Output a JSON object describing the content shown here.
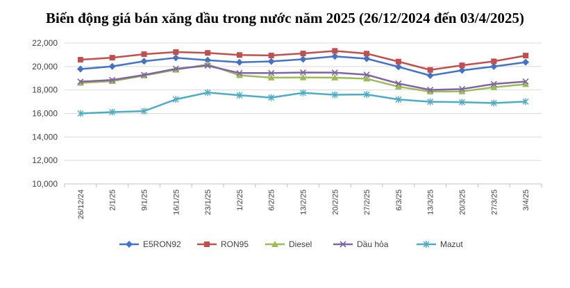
{
  "chart_data": {
    "type": "line",
    "title": "Biến động giá bán xăng dầu trong nước năm 2025 (26/12/2024 đến 03/4/2025)",
    "xlabel": "",
    "ylabel": "",
    "ylim": [
      10000,
      22000
    ],
    "yticks": [
      "10,000",
      "12,000",
      "14,000",
      "16,000",
      "18,000",
      "20,000",
      "22,000"
    ],
    "grid": true,
    "legend_position": "bottom",
    "categories": [
      "26/12/24",
      "2/1/25",
      "9/1/25",
      "16/1/25",
      "23/1/25",
      "1/2/25",
      "6/2/25",
      "13/2/25",
      "20/2/25",
      "27/2/25",
      "6/3/25",
      "13/3/25",
      "20/3/25",
      "27/3/25",
      "3/4/25"
    ],
    "series": [
      {
        "name": "E5RON92",
        "color": "#4472C4",
        "marker": "diamond",
        "values": [
          19780,
          20010,
          20450,
          20740,
          20540,
          20360,
          20430,
          20620,
          20860,
          20670,
          19970,
          19230,
          19670,
          20000,
          20370
        ]
      },
      {
        "name": "RON95",
        "color": "#C0504D",
        "marker": "square",
        "values": [
          20580,
          20750,
          21050,
          21230,
          21160,
          20980,
          20940,
          21110,
          21330,
          21100,
          20420,
          19710,
          20100,
          20440,
          20930
        ]
      },
      {
        "name": "Diesel",
        "color": "#9BBB59",
        "marker": "triangle",
        "values": [
          18600,
          18750,
          19230,
          19720,
          20180,
          19250,
          19050,
          19070,
          19050,
          18960,
          18280,
          17860,
          17880,
          18230,
          18490
        ]
      },
      {
        "name": "Dầu hỏa",
        "color": "#8064A2",
        "marker": "x",
        "values": [
          18710,
          18850,
          19280,
          19810,
          20070,
          19440,
          19440,
          19490,
          19480,
          19300,
          18550,
          18010,
          18080,
          18510,
          18720
        ]
      },
      {
        "name": "Mazut",
        "color": "#4BACC6",
        "marker": "star",
        "values": [
          16000,
          16120,
          16200,
          17200,
          17780,
          17550,
          17350,
          17760,
          17590,
          17620,
          17190,
          17000,
          16960,
          16890,
          17010
        ]
      }
    ]
  }
}
